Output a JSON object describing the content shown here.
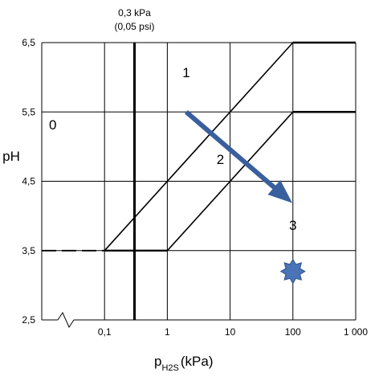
{
  "chart_data": {
    "type": "line",
    "xlabel": "p",
    "xlabel_sub": "H2S",
    "xlabel_unit": "(kPa)",
    "ylabel": "pH",
    "x_scale": "log",
    "x_ticks": [
      0.1,
      1,
      10,
      100,
      1000
    ],
    "x_tick_labels": [
      "0,1",
      "1",
      "10",
      "100",
      "1 000"
    ],
    "x_break_label": "",
    "y_ticks": [
      2.5,
      3.5,
      4.5,
      5.5,
      6.5
    ],
    "y_tick_labels": [
      "2,5",
      "3,5",
      "4,5",
      "5,5",
      "6,5"
    ],
    "xlim": [
      0.01,
      1000
    ],
    "ylim": [
      2.5,
      6.5
    ],
    "grid": true,
    "colors": {
      "grid": "#000000",
      "lines": "#000000",
      "arrow": "#3a5f9e",
      "star": "#4a73b8"
    },
    "series": [
      {
        "line_style": "solid",
        "points": [
          [
            0.1,
            3.5
          ],
          [
            100,
            6.5
          ],
          [
            1000,
            6.5
          ]
        ]
      },
      {
        "line_style": "dashed",
        "points": [
          [
            0.01,
            3.5
          ],
          [
            0.1,
            3.5
          ]
        ]
      },
      {
        "line_style": "solid",
        "points": [
          [
            0.1,
            3.5
          ],
          [
            1,
            3.5
          ],
          [
            100,
            5.5
          ],
          [
            1000,
            5.5
          ]
        ]
      }
    ],
    "threshold_line": {
      "x": 0.3,
      "label_line1": "0,3 kPa",
      "label_line2": "(0,05 psi)"
    },
    "regions": [
      {
        "label": "0",
        "x": 0.015,
        "y": 5.25
      },
      {
        "label": "1",
        "x": 2.0,
        "y": 6.0
      },
      {
        "label": "2",
        "x": 7.0,
        "y": 4.75
      },
      {
        "label": "3",
        "x": 100,
        "y": 3.8
      }
    ],
    "arrow": {
      "from": [
        2.0,
        5.5
      ],
      "to": [
        70,
        4.3
      ]
    },
    "star_marker": {
      "x": 100,
      "y": 3.2
    }
  }
}
